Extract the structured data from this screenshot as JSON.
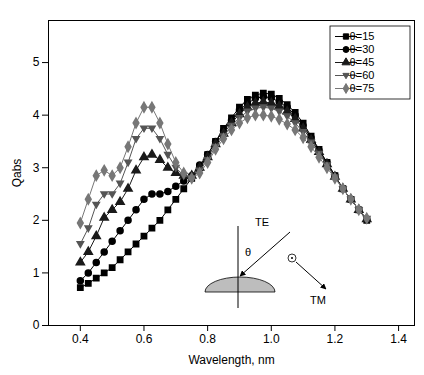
{
  "chart_data": {
    "type": "line",
    "x_label": "Wavelength, nm",
    "y_label": "Qabs",
    "x": [
      0.4,
      0.425,
      0.45,
      0.475,
      0.5,
      0.525,
      0.55,
      0.575,
      0.6,
      0.625,
      0.65,
      0.675,
      0.7,
      0.725,
      0.75,
      0.775,
      0.8,
      0.825,
      0.85,
      0.875,
      0.9,
      0.925,
      0.95,
      0.975,
      1.0,
      1.025,
      1.05,
      1.075,
      1.1,
      1.125,
      1.15,
      1.175,
      1.2,
      1.225,
      1.25,
      1.275,
      1.3
    ],
    "series": [
      {
        "name": "θ=15",
        "color": "#000000",
        "marker": "square",
        "values": [
          0.72,
          0.8,
          0.9,
          1.0,
          1.1,
          1.25,
          1.4,
          1.55,
          1.7,
          1.85,
          2.0,
          2.2,
          2.4,
          2.6,
          2.8,
          3.0,
          3.25,
          3.5,
          3.75,
          3.95,
          4.15,
          4.3,
          4.38,
          4.42,
          4.4,
          4.32,
          4.2,
          4.05,
          3.85,
          3.6,
          3.35,
          3.1,
          2.85,
          2.6,
          2.4,
          2.2,
          2.0
        ]
      },
      {
        "name": "θ=30",
        "color": "#000000",
        "marker": "circle",
        "values": [
          0.85,
          1.0,
          1.2,
          1.4,
          1.6,
          1.8,
          2.0,
          2.2,
          2.4,
          2.5,
          2.5,
          2.55,
          2.65,
          2.75,
          2.85,
          3.05,
          3.25,
          3.5,
          3.7,
          3.9,
          4.1,
          4.22,
          4.32,
          4.35,
          4.33,
          4.25,
          4.15,
          4.0,
          3.8,
          3.57,
          3.33,
          3.1,
          2.85,
          2.6,
          2.4,
          2.2,
          2.02
        ]
      },
      {
        "name": "θ=45",
        "color": "#1a1a1a",
        "marker": "triangle",
        "values": [
          1.2,
          1.4,
          1.7,
          2.05,
          2.2,
          2.35,
          2.6,
          2.95,
          3.2,
          3.25,
          3.15,
          3.0,
          2.9,
          2.85,
          2.85,
          3.0,
          3.2,
          3.45,
          3.65,
          3.85,
          4.02,
          4.15,
          4.23,
          4.25,
          4.23,
          4.17,
          4.07,
          3.93,
          3.75,
          3.53,
          3.3,
          3.07,
          2.83,
          2.6,
          2.4,
          2.2,
          2.02
        ]
      },
      {
        "name": "θ=60",
        "color": "#555555",
        "marker": "triangle-down",
        "values": [
          1.55,
          1.85,
          2.3,
          2.5,
          2.5,
          2.7,
          3.1,
          3.55,
          3.75,
          3.75,
          3.55,
          3.25,
          3.0,
          2.85,
          2.8,
          2.95,
          3.15,
          3.4,
          3.6,
          3.8,
          3.95,
          4.07,
          4.13,
          4.15,
          4.13,
          4.07,
          3.98,
          3.85,
          3.68,
          3.48,
          3.27,
          3.05,
          2.82,
          2.6,
          2.4,
          2.2,
          2.03
        ]
      },
      {
        "name": "θ=75",
        "color": "#777777",
        "marker": "diamond",
        "values": [
          1.95,
          2.4,
          2.85,
          2.95,
          2.85,
          3.0,
          3.4,
          3.85,
          4.15,
          4.15,
          3.85,
          3.45,
          3.1,
          2.9,
          2.8,
          2.9,
          3.1,
          3.35,
          3.55,
          3.72,
          3.85,
          3.95,
          4.0,
          4.0,
          3.98,
          3.92,
          3.83,
          3.72,
          3.57,
          3.4,
          3.2,
          3.0,
          2.8,
          2.6,
          2.4,
          2.2,
          2.04
        ]
      }
    ],
    "xlim": [
      0.3,
      1.45
    ],
    "ylim": [
      0,
      5.8
    ],
    "xticks": [
      0.4,
      0.6,
      0.8,
      {
        "value": 1,
        "label": "1.0"
      },
      1.2,
      1.4
    ],
    "yticks": [
      0,
      1,
      2,
      3,
      4,
      5
    ],
    "legend": "upper right",
    "annotations": [
      "TE",
      "θ",
      "TM"
    ]
  }
}
